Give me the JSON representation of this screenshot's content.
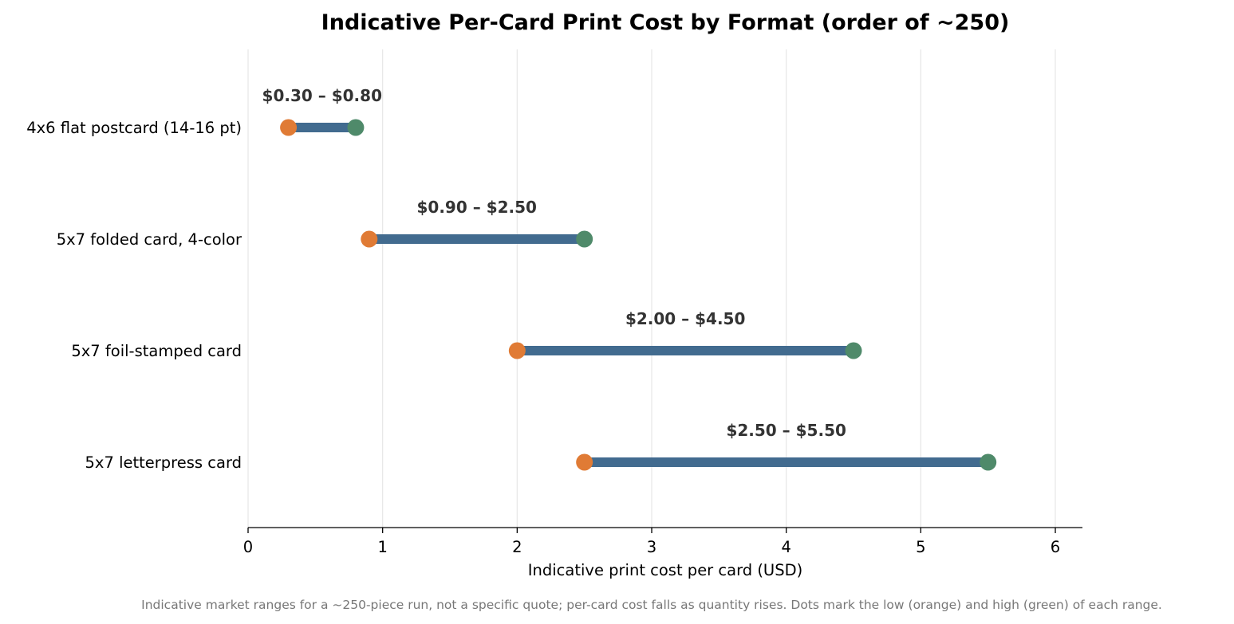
{
  "chart_data": {
    "type": "dumbbell",
    "title": "Indicative Per-Card Print Cost by Format (order of ~250)",
    "xlabel": "Indicative print cost per card (USD)",
    "ylabel": "",
    "xlim": [
      0,
      6.2
    ],
    "xticks": [
      0,
      1,
      2,
      3,
      4,
      5,
      6
    ],
    "grid": "vertical",
    "categories": [
      "4x6 flat postcard (14-16 pt)",
      "5x7 folded card, 4-color",
      "5x7 foil-stamped card",
      "5x7 letterpress card"
    ],
    "low": [
      0.3,
      0.9,
      2.0,
      2.5
    ],
    "high": [
      0.8,
      2.5,
      4.5,
      5.5
    ],
    "range_labels": [
      "$0.30  –  $0.80",
      "$0.90  –  $2.50",
      "$2.00  –  $4.50",
      "$2.50  –  $5.50"
    ],
    "colors": {
      "low": "#e07b35",
      "high": "#4f8a6a",
      "bar": "#426b8f",
      "grid": "#e6e6e6",
      "axis": "#000000"
    }
  },
  "footnote": "Indicative market ranges for a ~250-piece run, not a specific quote; per-card cost falls as quantity rises. Dots mark the low (orange) and high (green) of each range."
}
